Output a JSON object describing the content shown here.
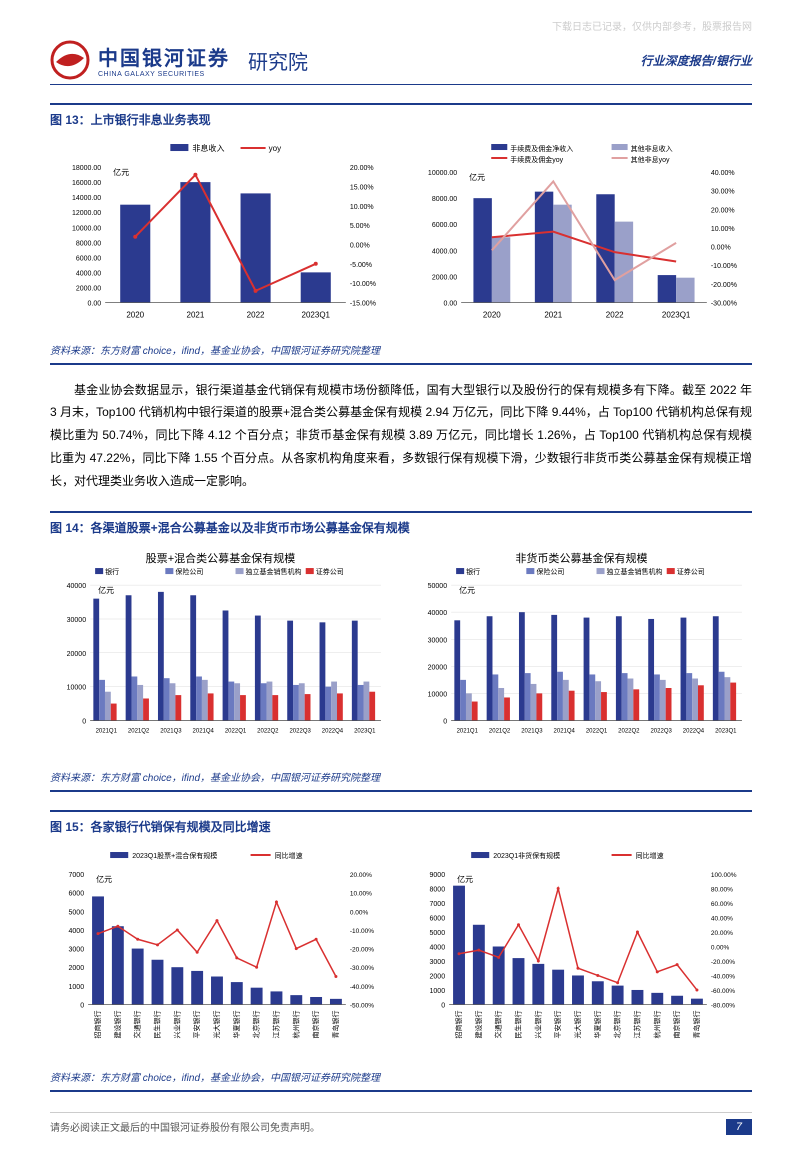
{
  "watermark": "下载日志已记录，仅供内部参考，股票报告网",
  "header": {
    "logo_cn": "中国银河证券",
    "logo_en": "CHINA GALAXY SECURITIES",
    "institute": "研究院",
    "right": "行业深度报告/银行业"
  },
  "fig13": {
    "title": "图 13：上市银行非息业务表现",
    "source": "资料来源：东方财富 choice，ifind，基金业协会，中国银河证券研究院整理",
    "left": {
      "legend_bar": "非息收入",
      "legend_line": "yoy",
      "y_label": "亿元",
      "y_ticks": [
        "0.00",
        "2000.00",
        "4000.00",
        "6000.00",
        "8000.00",
        "10000.00",
        "12000.00",
        "14000.00",
        "16000.00",
        "18000.00"
      ],
      "y2_ticks": [
        "-15.00%",
        "-10.00%",
        "-5.00%",
        "0.00%",
        "5.00%",
        "10.00%",
        "15.00%",
        "20.00%"
      ],
      "categories": [
        "2020",
        "2021",
        "2022",
        "2023Q1"
      ],
      "bars": [
        13000,
        16000,
        14500,
        4000
      ],
      "line": [
        2,
        18,
        -12,
        -5
      ],
      "bar_color": "#2b3a8f",
      "line_color": "#d93030"
    },
    "right": {
      "legend": [
        "手续费及佣金净收入",
        "其他非息收入",
        "手续费及佣金yoy",
        "其他非息yoy"
      ],
      "y_label": "亿元",
      "y_ticks": [
        "0.00",
        "2000.00",
        "4000.00",
        "6000.00",
        "8000.00",
        "10000.00"
      ],
      "y2_ticks": [
        "-30.00%",
        "-20.00%",
        "-10.00%",
        "0.00%",
        "10.00%",
        "20.00%",
        "30.00%",
        "40.00%"
      ],
      "categories": [
        "2020",
        "2021",
        "2022",
        "2023Q1"
      ],
      "bars1": [
        8000,
        8500,
        8300,
        2100
      ],
      "bars2": [
        5000,
        7500,
        6200,
        1900
      ],
      "line1": [
        5,
        8,
        -3,
        -8
      ],
      "line2": [
        -2,
        35,
        -18,
        2
      ],
      "colors": [
        "#2b3a8f",
        "#9aa0c9",
        "#d93030",
        "#e0a0a0"
      ]
    }
  },
  "body_text": "基金业协会数据显示，银行渠道基金代销保有规模市场份额降低，国有大型银行以及股份行的保有规模多有下降。截至 2022 年 3 月末，Top100 代销机构中银行渠道的股票+混合类公募基金保有规模 2.94 万亿元，同比下降 9.44%，占 Top100 代销机构总保有规模比重为 50.74%，同比下降 4.12 个百分点；非货币基金保有规模 3.89 万亿元，同比增长 1.26%，占 Top100 代销机构总保有规模比重为 47.22%，同比下降 1.55 个百分点。从各家机构角度来看，多数银行保有规模下滑，少数银行非货币类公募基金保有规模正增长，对代理类业务收入造成一定影响。",
  "fig14": {
    "title": "图 14：各渠道股票+混合公募基金以及非货币市场公募基金保有规模",
    "source": "资料来源：东方财富 choice，ifind，基金业协会，中国银河证券研究院整理",
    "left_title": "股票+混合类公募基金保有规模",
    "right_title": "非货币类公募基金保有规模",
    "legend": [
      "银行",
      "保险公司",
      "独立基金销售机构",
      "证券公司"
    ],
    "y_label": "亿元",
    "y_left_ticks": [
      "0",
      "10000",
      "20000",
      "30000",
      "40000"
    ],
    "y_right_ticks": [
      "0",
      "10000",
      "20000",
      "30000",
      "40000",
      "50000"
    ],
    "categories": [
      "2021Q1",
      "2021Q2",
      "2021Q3",
      "2021Q4",
      "2022Q1",
      "2022Q2",
      "2022Q3",
      "2022Q4",
      "2023Q1"
    ],
    "left_data": {
      "bank": [
        36000,
        37000,
        38000,
        37000,
        32500,
        31000,
        29500,
        29000,
        29500
      ],
      "ins": [
        12000,
        13000,
        12500,
        13000,
        11500,
        11000,
        10500,
        10000,
        10500
      ],
      "ind": [
        8500,
        10500,
        11000,
        12000,
        11000,
        11500,
        11000,
        11500,
        11500
      ],
      "sec": [
        5000,
        6500,
        7500,
        8000,
        7500,
        7500,
        7800,
        8000,
        8500
      ]
    },
    "right_data": {
      "bank": [
        37000,
        38500,
        40000,
        39000,
        38000,
        38500,
        37500,
        38000,
        38500
      ],
      "ins": [
        15000,
        17000,
        17500,
        18000,
        17000,
        17500,
        17000,
        17500,
        18000
      ],
      "ind": [
        10000,
        12000,
        13500,
        15000,
        14500,
        15500,
        15000,
        15500,
        16000
      ],
      "sec": [
        7000,
        8500,
        10000,
        11000,
        10500,
        11500,
        12000,
        13000,
        14000
      ]
    },
    "colors": [
      "#2b3a8f",
      "#6b7ac0",
      "#9aa0c9",
      "#d93030"
    ]
  },
  "fig15": {
    "title": "图 15：各家银行代销保有规模及同比增速",
    "source": "资料来源：东方财富 choice，ifind，基金业协会，中国银河证券研究院整理",
    "left_legend": [
      "2023Q1股票+混合保有规模",
      "同比增速"
    ],
    "right_legend": [
      "2023Q1非货保有规模",
      "同比增速"
    ],
    "y_label": "亿元",
    "y_left_ticks": [
      "0",
      "1000",
      "2000",
      "3000",
      "4000",
      "5000",
      "6000",
      "7000"
    ],
    "y2_left_ticks": [
      "-50.00%",
      "-40.00%",
      "-30.00%",
      "-20.00%",
      "-10.00%",
      "0.00%",
      "10.00%",
      "20.00%"
    ],
    "y_right_ticks": [
      "0",
      "1000",
      "2000",
      "3000",
      "4000",
      "5000",
      "6000",
      "7000",
      "8000",
      "9000"
    ],
    "y2_right_ticks": [
      "-80.00%",
      "-60.00%",
      "-40.00%",
      "-20.00%",
      "0.00%",
      "20.00%",
      "40.00%",
      "60.00%",
      "80.00%",
      "100.00%"
    ],
    "banks": [
      "招商银行",
      "建设银行",
      "交通银行",
      "民生银行",
      "兴业银行",
      "平安银行",
      "光大银行",
      "华夏银行",
      "北京银行",
      "江苏银行",
      "杭州银行",
      "南京银行",
      "青岛银行"
    ],
    "left_bars": [
      5800,
      4200,
      3000,
      2400,
      2000,
      1800,
      1500,
      1200,
      900,
      700,
      500,
      400,
      300
    ],
    "left_line": [
      -12,
      -8,
      -15,
      -18,
      -10,
      -22,
      -5,
      -25,
      -30,
      5,
      -20,
      -15,
      -35
    ],
    "right_bars": [
      8200,
      5500,
      4000,
      3200,
      2800,
      2400,
      2000,
      1600,
      1300,
      1000,
      800,
      600,
      400
    ],
    "right_line": [
      -10,
      -5,
      -15,
      30,
      -20,
      80,
      -30,
      -40,
      -50,
      20,
      -35,
      -25,
      -60
    ],
    "bar_color": "#2b3a8f",
    "line_color": "#d93030"
  },
  "footer": {
    "disclaimer": "请务必阅读正文最后的中国银河证券股份有限公司免责声明。",
    "page": "7"
  }
}
